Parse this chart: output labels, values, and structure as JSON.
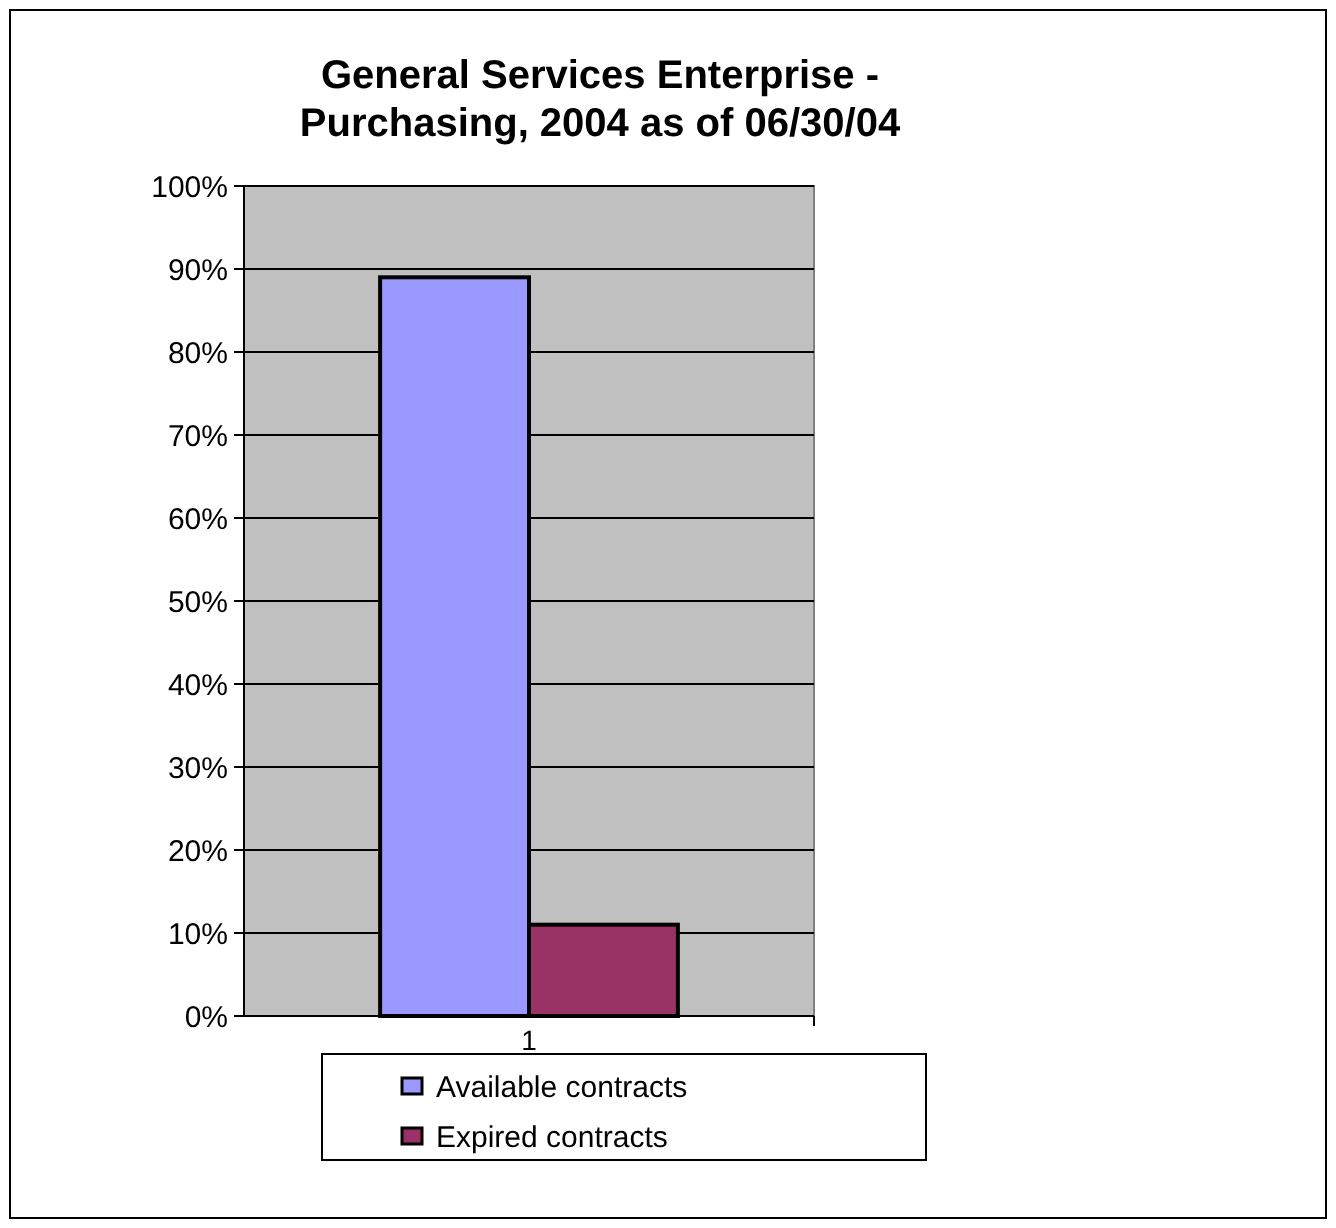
{
  "chart_data": {
    "type": "bar",
    "title": "General Services Enterprise - Purchasing, 2004 as of 06/30/04",
    "categories": [
      "1"
    ],
    "series": [
      {
        "name": "Available contracts",
        "color": "#9999ff",
        "values": [
          89
        ]
      },
      {
        "name": "Expired contracts",
        "color": "#993366",
        "values": [
          11
        ]
      }
    ],
    "ylim": [
      0,
      100
    ],
    "yticks": [
      {
        "value": 0,
        "label": "0%"
      },
      {
        "value": 10,
        "label": "10%"
      },
      {
        "value": 20,
        "label": "20%"
      },
      {
        "value": 30,
        "label": "30%"
      },
      {
        "value": 40,
        "label": "40%"
      },
      {
        "value": 50,
        "label": "50%"
      },
      {
        "value": 60,
        "label": "60%"
      },
      {
        "value": 70,
        "label": "70%"
      },
      {
        "value": 80,
        "label": "80%"
      },
      {
        "value": 90,
        "label": "90%"
      },
      {
        "value": 100,
        "label": "100%"
      }
    ],
    "grid": "y",
    "legend": "bottom"
  }
}
